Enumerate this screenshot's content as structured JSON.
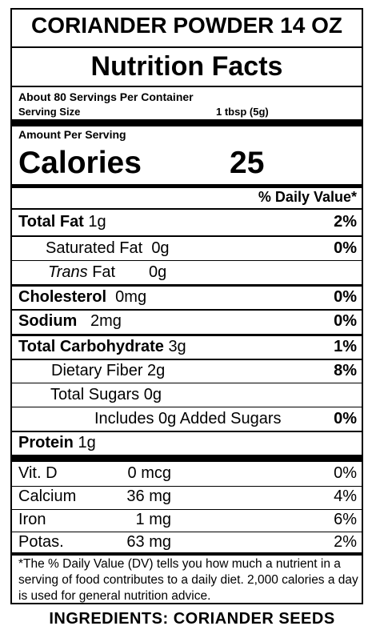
{
  "product_name": "CORIANDER POWDER 14 OZ",
  "title": "Nutrition Facts",
  "servings_per_container": "About 80 Servings Per Container",
  "serving_size_label": "Serving Size",
  "serving_size_value": "1 tbsp (5g)",
  "amount_per_serving": "Amount Per Serving",
  "calories_label": "Calories",
  "calories_value": "25",
  "daily_value_header": "% Daily Value*",
  "nutrients": {
    "total_fat": {
      "label": "Total Fat",
      "amount": "1g",
      "dv": "2%"
    },
    "saturated_fat": {
      "label": "Saturated Fat",
      "amount": "0g",
      "dv": "0%"
    },
    "trans_fat": {
      "label_italic": "Trans",
      "label": "Fat",
      "amount": "0g"
    },
    "cholesterol": {
      "label": "Cholesterol",
      "amount": "0mg",
      "dv": "0%"
    },
    "sodium": {
      "label": "Sodium",
      "amount": "2mg",
      "dv": "0%"
    },
    "total_carbohydrate": {
      "label": "Total Carbohydrate",
      "amount": "3g",
      "dv": "1%"
    },
    "dietary_fiber": {
      "label": "Dietary Fiber",
      "amount": "2g",
      "dv": "8%"
    },
    "total_sugars": {
      "label": "Total Sugars",
      "amount": "0g"
    },
    "added_sugars": {
      "label": "Includes 0g Added Sugars",
      "dv": "0%"
    },
    "protein": {
      "label": "Protein",
      "amount": "1g"
    }
  },
  "vitamins": [
    {
      "name": "Vit.  D",
      "amount": "0 mcg",
      "dv": "0%"
    },
    {
      "name": "Calcium",
      "amount": "36 mg",
      "dv": "4%"
    },
    {
      "name": "Iron",
      "amount": "1 mg",
      "dv": "6%"
    },
    {
      "name": "Potas.",
      "amount": "63 mg",
      "dv": "2%"
    }
  ],
  "footnote": "*The % Daily Value (DV) tells you how much a nutrient in a serving of food contributes to a daily diet. 2,000 calories a day is used for general nutrition advice.",
  "ingredients": "INGREDIENTS: CORIANDER SEEDS"
}
